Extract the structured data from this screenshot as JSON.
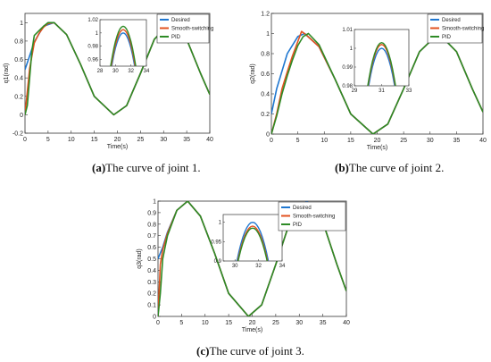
{
  "captions": [
    {
      "label": "(a)",
      "text": "The curve of joint 1."
    },
    {
      "label": "(b)",
      "text": "The curve of joint 2."
    },
    {
      "label": "(c)",
      "text": "The curve of joint 3."
    }
  ],
  "colors": {
    "desired": "#1f77d0",
    "smooth": "#e2511f",
    "pid": "#2e8b26"
  },
  "chart_data": [
    {
      "type": "line",
      "xlabel": "Time(s)",
      "ylabel": "q1(rad)",
      "xlim": [
        0,
        40
      ],
      "ylim": [
        -0.2,
        1.1
      ],
      "xticks": [
        0,
        5,
        10,
        15,
        20,
        25,
        30,
        35,
        40
      ],
      "yticks": [
        -0.2,
        0,
        0.2,
        0.4,
        0.6,
        0.8,
        1
      ],
      "yticklabels": [
        "-0.2",
        "0",
        "0.2",
        "0.4",
        "0.6",
        "0.8",
        "1"
      ],
      "legend": {
        "position": "top-right",
        "entries": [
          "Desired",
          "Smooth-switching",
          "PID"
        ]
      },
      "inset": {
        "xlim": [
          28,
          34
        ],
        "ylim": [
          0.95,
          1.02
        ],
        "xticks": [
          28,
          30,
          32,
          34
        ],
        "yticks": [
          0.96,
          0.98,
          1,
          1.02
        ],
        "yticklabels": [
          "0.96",
          "0.98",
          "1",
          "1.02"
        ]
      },
      "series": [
        {
          "name": "Desired",
          "x": [
            0,
            2,
            4,
            6.3,
            9,
            12,
            15,
            19.2,
            22,
            25,
            28,
            31.6,
            35,
            38,
            40
          ],
          "y": [
            0.49,
            0.79,
            0.96,
            1.0,
            0.87,
            0.55,
            0.2,
            0.0,
            0.1,
            0.45,
            0.82,
            1.0,
            0.82,
            0.45,
            0.22
          ]
        },
        {
          "name": "Smooth-switching",
          "x": [
            0,
            0.5,
            1,
            2,
            3,
            4,
            5,
            6.3,
            9,
            12,
            15,
            19.2,
            22,
            25,
            28,
            31.6,
            35,
            38,
            40
          ],
          "y": [
            0.0,
            0.25,
            0.5,
            0.78,
            0.88,
            0.95,
            0.99,
            1.0,
            0.87,
            0.55,
            0.2,
            0.0,
            0.1,
            0.45,
            0.82,
            1.005,
            0.82,
            0.45,
            0.22
          ]
        },
        {
          "name": "PID",
          "x": [
            0,
            0.5,
            1,
            1.5,
            2,
            3,
            4,
            5,
            6.3,
            9,
            12,
            15,
            19.2,
            22,
            25,
            28,
            31.6,
            35,
            38,
            40
          ],
          "y": [
            0.0,
            0.1,
            0.4,
            0.7,
            0.86,
            0.91,
            0.96,
            1.0,
            1.0,
            0.87,
            0.55,
            0.2,
            0.0,
            0.1,
            0.45,
            0.82,
            1.01,
            0.82,
            0.45,
            0.22
          ]
        }
      ]
    },
    {
      "type": "line",
      "xlabel": "Time(s)",
      "ylabel": "q2(rad)",
      "xlim": [
        0,
        40
      ],
      "ylim": [
        0,
        1.2
      ],
      "xticks": [
        0,
        5,
        10,
        15,
        20,
        25,
        30,
        35,
        40
      ],
      "yticks": [
        0,
        0.2,
        0.4,
        0.6,
        0.8,
        1,
        1.2
      ],
      "yticklabels": [
        "0",
        "0.2",
        "0.4",
        "0.6",
        "0.8",
        "1",
        "1.2"
      ],
      "legend": {
        "position": "top-right",
        "entries": [
          "Desired",
          "Smooth-switching",
          "PID"
        ]
      },
      "inset": {
        "xlim": [
          29,
          33
        ],
        "ylim": [
          0.98,
          1.01
        ],
        "xticks": [
          29,
          31,
          33
        ],
        "yticks": [
          0.98,
          0.99,
          1,
          1.01
        ],
        "yticklabels": [
          "0.98",
          "0.99",
          "1",
          "1.01"
        ]
      },
      "series": [
        {
          "name": "Desired",
          "x": [
            0,
            1,
            3,
            5,
            6.3,
            9,
            12,
            15,
            19.2,
            22,
            25,
            28,
            31.6,
            35,
            38,
            40
          ],
          "y": [
            0.2,
            0.45,
            0.8,
            0.97,
            1.0,
            0.87,
            0.55,
            0.2,
            0.0,
            0.1,
            0.45,
            0.82,
            1.0,
            0.82,
            0.45,
            0.22
          ]
        },
        {
          "name": "Smooth-switching",
          "x": [
            0,
            1,
            2,
            3,
            4,
            5,
            5.7,
            6.5,
            9,
            12,
            15,
            19.2,
            22,
            25,
            28,
            31.6,
            35,
            38,
            40
          ],
          "y": [
            0.0,
            0.2,
            0.45,
            0.62,
            0.78,
            0.92,
            1.02,
            0.99,
            0.87,
            0.55,
            0.2,
            0.0,
            0.1,
            0.45,
            0.82,
            1.002,
            0.82,
            0.45,
            0.22
          ]
        },
        {
          "name": "PID",
          "x": [
            0,
            1,
            2,
            3,
            4,
            5,
            6,
            7,
            9,
            12,
            15,
            19.2,
            22,
            25,
            28,
            31.6,
            35,
            38,
            40
          ],
          "y": [
            0.0,
            0.18,
            0.4,
            0.58,
            0.74,
            0.88,
            0.97,
            1.0,
            0.89,
            0.55,
            0.2,
            0.0,
            0.1,
            0.45,
            0.82,
            1.003,
            0.82,
            0.45,
            0.22
          ]
        }
      ]
    },
    {
      "type": "line",
      "xlabel": "Time(s)",
      "ylabel": "q3(rad)",
      "xlim": [
        0,
        40
      ],
      "ylim": [
        0,
        1
      ],
      "xticks": [
        0,
        5,
        10,
        15,
        20,
        25,
        30,
        35,
        40
      ],
      "yticks": [
        0,
        0.1,
        0.2,
        0.3,
        0.4,
        0.5,
        0.6,
        0.7,
        0.8,
        0.9,
        1
      ],
      "yticklabels": [
        "0",
        "0.1",
        "0.2",
        "0.3",
        "0.4",
        "0.5",
        "0.6",
        "0.7",
        "0.8",
        "0.9",
        "1"
      ],
      "legend": {
        "position": "top-right",
        "entries": [
          "Desired",
          "Smooth-switching",
          "PID"
        ]
      },
      "inset": {
        "xlim": [
          29,
          34
        ],
        "ylim": [
          0.9,
          1.02
        ],
        "xticks": [
          30,
          32,
          34
        ],
        "yticks": [
          0.9,
          0.95,
          1
        ],
        "yticklabels": [
          "0.9",
          "0.95",
          "1"
        ]
      },
      "series": [
        {
          "name": "Desired",
          "x": [
            0,
            1,
            2,
            4,
            6.3,
            9,
            12,
            15,
            19.2,
            22,
            25,
            28,
            31.6,
            35,
            38,
            40
          ],
          "y": [
            0.5,
            0.6,
            0.73,
            0.92,
            1.0,
            0.87,
            0.55,
            0.2,
            0.0,
            0.1,
            0.45,
            0.82,
            1.0,
            0.82,
            0.45,
            0.22
          ]
        },
        {
          "name": "Smooth-switching",
          "x": [
            0,
            0.5,
            1,
            2,
            4,
            6.3,
            9,
            12,
            15,
            19.2,
            22,
            25,
            28,
            31.6,
            35,
            38,
            40
          ],
          "y": [
            0.0,
            0.45,
            0.58,
            0.72,
            0.92,
            1.0,
            0.87,
            0.55,
            0.2,
            0.0,
            0.1,
            0.45,
            0.82,
            0.99,
            0.82,
            0.45,
            0.22
          ]
        },
        {
          "name": "PID",
          "x": [
            0,
            0.5,
            1,
            1.5,
            2,
            4,
            6.3,
            9,
            12,
            15,
            19.2,
            22,
            25,
            28,
            31.6,
            35,
            38,
            40
          ],
          "y": [
            0.0,
            0.2,
            0.5,
            0.6,
            0.7,
            0.92,
            1.0,
            0.87,
            0.55,
            0.2,
            0.0,
            0.1,
            0.45,
            0.82,
            0.985,
            0.82,
            0.45,
            0.22
          ]
        }
      ]
    }
  ]
}
